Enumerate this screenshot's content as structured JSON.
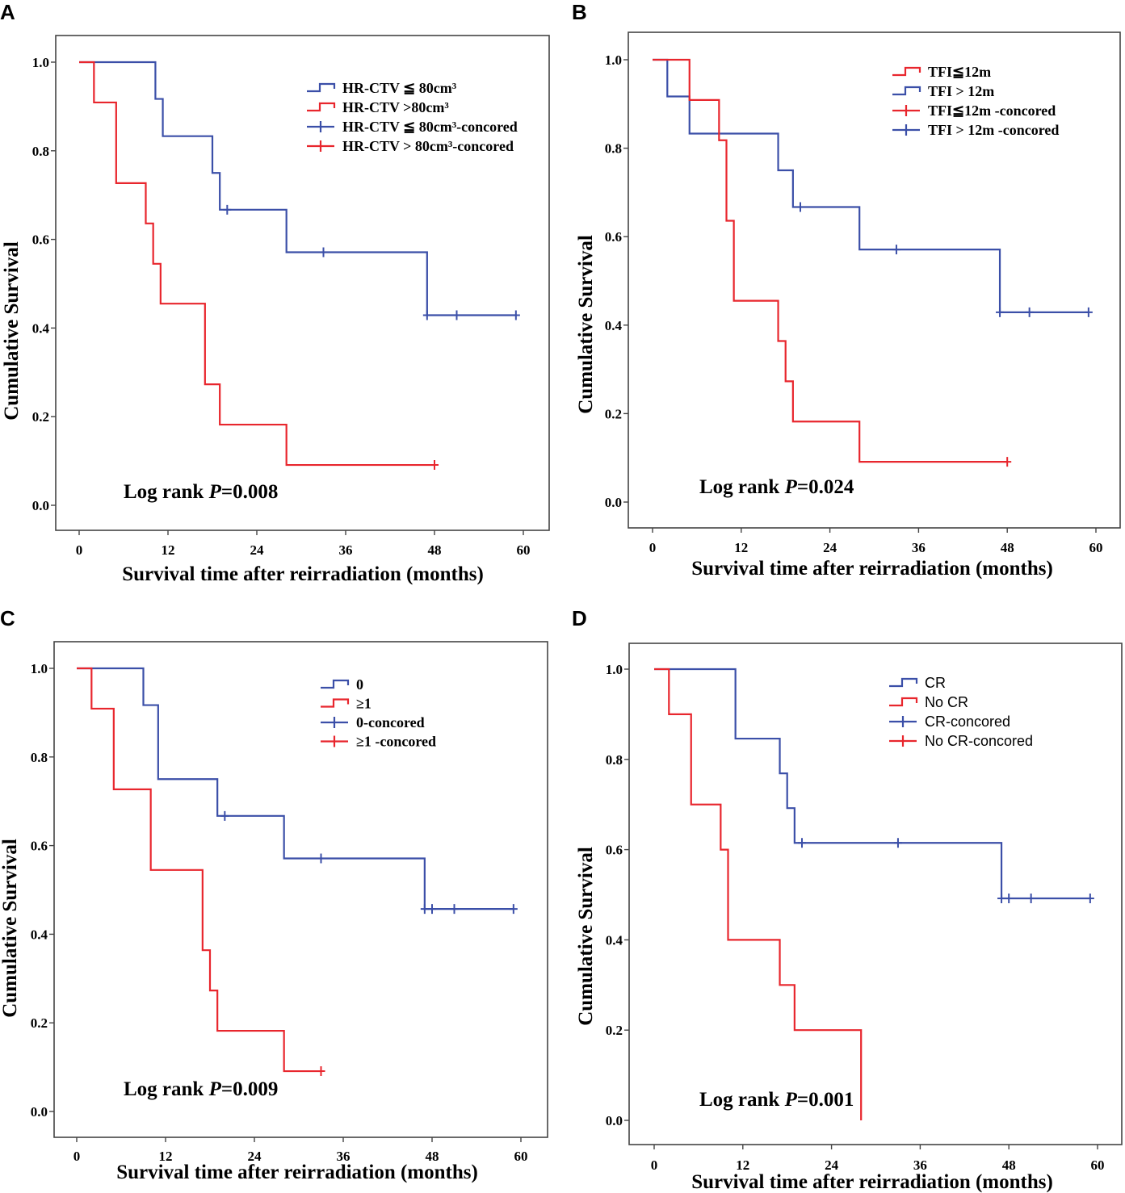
{
  "chart_data": [
    {
      "panel": "A",
      "type": "line",
      "subtype": "kaplan-meier",
      "xlabel": "Survival time after reirradiation (months)",
      "ylabel": "Cumulative Survival",
      "xticks": [
        "0",
        "12",
        "24",
        "36",
        "48",
        "60"
      ],
      "yticks": [
        "0.0",
        "0.2",
        "0.4",
        "0.6",
        "0.8",
        "1.0"
      ],
      "xlim": [
        0,
        60
      ],
      "ylim": [
        0,
        1
      ],
      "legend_sans": false,
      "legend": [
        {
          "label": "HR-CTV ≦ 80cm³",
          "color": "#3b4fa8",
          "kind": "step"
        },
        {
          "label": "HR-CTV >80cm³",
          "color": "#e8262d",
          "kind": "step"
        },
        {
          "label": "HR-CTV ≦ 80cm³-concored",
          "color": "#3b4fa8",
          "kind": "censor"
        },
        {
          "label": "HR-CTV > 80cm³-concored",
          "color": "#e8262d",
          "kind": "censor"
        }
      ],
      "annotation": {
        "prefix": "Log rank ",
        "p": "P",
        "value": "=0.008"
      },
      "series": [
        {
          "name": "HR-CTV ≦ 80cm³",
          "color": "#3b4fa8",
          "steps": [
            [
              0,
              1.0
            ],
            [
              10.3,
              0.917
            ],
            [
              11.3,
              0.833
            ],
            [
              18.0,
              0.75
            ],
            [
              19.0,
              0.667
            ],
            [
              28.0,
              0.571
            ],
            [
              47.0,
              0.429
            ]
          ],
          "end": 59.0,
          "censored": [
            [
              20.0,
              0.667
            ],
            [
              33.0,
              0.571
            ],
            [
              47.0,
              0.429
            ],
            [
              51.0,
              0.429
            ],
            [
              59.0,
              0.429
            ]
          ]
        },
        {
          "name": "HR-CTV >80cm³",
          "color": "#e8262d",
          "steps": [
            [
              0,
              1.0
            ],
            [
              2.0,
              0.909
            ],
            [
              5.0,
              0.727
            ],
            [
              9.0,
              0.636
            ],
            [
              10.0,
              0.545
            ],
            [
              11.0,
              0.455
            ],
            [
              17.0,
              0.273
            ],
            [
              19.0,
              0.182
            ],
            [
              28.0,
              0.091
            ]
          ],
          "end": 48.0,
          "censored": [
            [
              48.0,
              0.091
            ]
          ]
        }
      ]
    },
    {
      "panel": "B",
      "type": "line",
      "subtype": "kaplan-meier",
      "xlabel": "Survival time after reirradiation (months)",
      "ylabel": "Cumulative Survival",
      "xticks": [
        "0",
        "12",
        "24",
        "36",
        "48",
        "60"
      ],
      "yticks": [
        "0.0",
        "0.2",
        "0.4",
        "0.6",
        "0.8",
        "1.0"
      ],
      "xlim": [
        0,
        60
      ],
      "ylim": [
        0,
        1
      ],
      "legend_sans": false,
      "legend": [
        {
          "label": "TFI≦12m",
          "color": "#e8262d",
          "kind": "step"
        },
        {
          "label": "TFI > 12m",
          "color": "#3b4fa8",
          "kind": "step"
        },
        {
          "label": "TFI≦12m -concored",
          "color": "#e8262d",
          "kind": "censor"
        },
        {
          "label": "TFI > 12m -concored",
          "color": "#3b4fa8",
          "kind": "censor"
        }
      ],
      "annotation": {
        "prefix": "Log rank ",
        "p": "P",
        "value": "=0.024"
      },
      "series": [
        {
          "name": "TFI > 12m",
          "color": "#3b4fa8",
          "steps": [
            [
              0,
              1.0
            ],
            [
              2.0,
              0.917
            ],
            [
              5.0,
              0.833
            ],
            [
              17.0,
              0.75
            ],
            [
              19.0,
              0.667
            ],
            [
              28.0,
              0.571
            ],
            [
              47.0,
              0.429
            ]
          ],
          "end": 59.0,
          "censored": [
            [
              20.0,
              0.667
            ],
            [
              33.0,
              0.571
            ],
            [
              47.0,
              0.429
            ],
            [
              51.0,
              0.429
            ],
            [
              59.0,
              0.429
            ]
          ]
        },
        {
          "name": "TFI≦12m",
          "color": "#e8262d",
          "steps": [
            [
              0,
              1.0
            ],
            [
              5.0,
              0.909
            ],
            [
              9.0,
              0.818
            ],
            [
              10.0,
              0.636
            ],
            [
              11.0,
              0.455
            ],
            [
              17.0,
              0.364
            ],
            [
              18.0,
              0.273
            ],
            [
              19.0,
              0.182
            ],
            [
              28.0,
              0.091
            ]
          ],
          "end": 48.0,
          "censored": [
            [
              48.0,
              0.091
            ]
          ]
        }
      ]
    },
    {
      "panel": "C",
      "type": "line",
      "subtype": "kaplan-meier",
      "xlabel": "Survival time after reirradiation (months)",
      "ylabel": "Cumulative Survival",
      "xticks": [
        "0",
        "12",
        "24",
        "36",
        "48",
        "60"
      ],
      "yticks": [
        "0.0",
        "0.2",
        "0.4",
        "0.6",
        "0.8",
        "1.0"
      ],
      "xlim": [
        0,
        60
      ],
      "ylim": [
        0,
        1
      ],
      "legend_sans": false,
      "legend": [
        {
          "label": "0",
          "color": "#3b4fa8",
          "kind": "step"
        },
        {
          "label": "≥1",
          "color": "#e8262d",
          "kind": "step"
        },
        {
          "label": "0-concored",
          "color": "#3b4fa8",
          "kind": "censor"
        },
        {
          "label": "≥1 -concored",
          "color": "#e8262d",
          "kind": "censor"
        }
      ],
      "annotation": {
        "prefix": "Log rank ",
        "p": "P",
        "value": "=0.009"
      },
      "series": [
        {
          "name": "0",
          "color": "#3b4fa8",
          "steps": [
            [
              0,
              1.0
            ],
            [
              9.0,
              0.917
            ],
            [
              11.0,
              0.75
            ],
            [
              19.0,
              0.667
            ],
            [
              28.0,
              0.571
            ],
            [
              47.0,
              0.457
            ]
          ],
          "end": 59.0,
          "censored": [
            [
              20.0,
              0.667
            ],
            [
              33.0,
              0.571
            ],
            [
              47.0,
              0.457
            ],
            [
              48.0,
              0.457
            ],
            [
              51.0,
              0.457
            ],
            [
              59.0,
              0.457
            ]
          ]
        },
        {
          "name": "≥1",
          "color": "#e8262d",
          "steps": [
            [
              0,
              1.0
            ],
            [
              2.0,
              0.909
            ],
            [
              5.0,
              0.727
            ],
            [
              10.0,
              0.545
            ],
            [
              17.0,
              0.364
            ],
            [
              18.0,
              0.273
            ],
            [
              19.0,
              0.182
            ],
            [
              28.0,
              0.091
            ]
          ],
          "end": 33.0,
          "censored": [
            [
              33.0,
              0.091
            ]
          ]
        }
      ]
    },
    {
      "panel": "D",
      "type": "line",
      "subtype": "kaplan-meier",
      "xlabel": "Survival time after reirradiation (months)",
      "ylabel": "Cumulative Survival",
      "xticks": [
        "0",
        "12",
        "24",
        "36",
        "48",
        "60"
      ],
      "yticks": [
        "0.0",
        "0.2",
        "0.4",
        "0.6",
        "0.8",
        "1.0"
      ],
      "xlim": [
        0,
        60
      ],
      "ylim": [
        0,
        1
      ],
      "legend_sans": true,
      "legend": [
        {
          "label": "CR",
          "color": "#3b4fa8",
          "kind": "step"
        },
        {
          "label": "No CR",
          "color": "#e8262d",
          "kind": "step"
        },
        {
          "label": "CR-concored",
          "color": "#3b4fa8",
          "kind": "censor"
        },
        {
          "label": "No CR-concored",
          "color": "#e8262d",
          "kind": "censor"
        }
      ],
      "annotation": {
        "prefix": "Log rank ",
        "p": "P",
        "value": "=0.001"
      },
      "series": [
        {
          "name": "CR",
          "color": "#3b4fa8",
          "steps": [
            [
              0,
              1.0
            ],
            [
              11.0,
              0.846
            ],
            [
              17.0,
              0.769
            ],
            [
              18.0,
              0.692
            ],
            [
              19.0,
              0.615
            ],
            [
              47.0,
              0.492
            ]
          ],
          "end": 59.0,
          "censored": [
            [
              20.0,
              0.615
            ],
            [
              33.0,
              0.615
            ],
            [
              47.0,
              0.492
            ],
            [
              48.0,
              0.492
            ],
            [
              51.0,
              0.492
            ],
            [
              59.0,
              0.492
            ]
          ]
        },
        {
          "name": "No CR",
          "color": "#e8262d",
          "steps": [
            [
              0,
              1.0
            ],
            [
              2.0,
              0.9
            ],
            [
              5.0,
              0.7
            ],
            [
              9.0,
              0.6
            ],
            [
              10.0,
              0.4
            ],
            [
              17.0,
              0.3
            ],
            [
              19.0,
              0.2
            ],
            [
              28.0,
              0.0
            ]
          ],
          "end": 28.0,
          "censored": []
        }
      ]
    }
  ]
}
